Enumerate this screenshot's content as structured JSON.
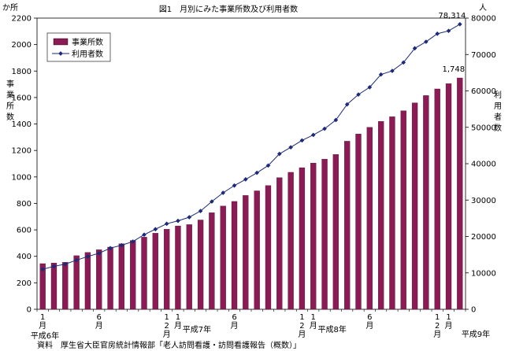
{
  "chart_data": {
    "type": "bar",
    "title": "図1　月別にみた事業所数及び利用者数",
    "source": "資料　厚生省大臣官房統計情報部「老人訪問看護・訪問看護報告（概数）」",
    "left_axis": {
      "unit": "か所",
      "label": [
        "事",
        "業",
        "所",
        "数"
      ],
      "ylim": [
        0,
        2200
      ],
      "ticks": [
        "0",
        "200",
        "400",
        "600",
        "800",
        "1000",
        "1200",
        "1400",
        "1600",
        "1800",
        "2000",
        "2200"
      ]
    },
    "right_axis": {
      "unit": "人",
      "label": [
        "利",
        "用",
        "者",
        "数"
      ],
      "ylim": [
        0,
        80000
      ],
      "ticks": [
        "0",
        "10000",
        "20000",
        "30000",
        "40000",
        "50000",
        "60000",
        "70000",
        "80000"
      ]
    },
    "x_labels": [
      {
        "index": 0,
        "chars": [
          "1",
          "月"
        ]
      },
      {
        "index": 5,
        "chars": [
          "6",
          "月"
        ]
      },
      {
        "index": 11,
        "chars": [
          "1",
          "2",
          "月"
        ]
      },
      {
        "index": 12,
        "chars": [
          "1",
          "月"
        ]
      },
      {
        "index": 17,
        "chars": [
          "6",
          "月"
        ]
      },
      {
        "index": 23,
        "chars": [
          "1",
          "2",
          "月"
        ]
      },
      {
        "index": 24,
        "chars": [
          "1",
          "月"
        ]
      },
      {
        "index": 29,
        "chars": [
          "6",
          "月"
        ]
      },
      {
        "index": 35,
        "chars": [
          "1",
          "2",
          "月"
        ]
      },
      {
        "index": 36,
        "chars": [
          "1",
          "月"
        ]
      }
    ],
    "year_labels": [
      {
        "index": 0,
        "text": "平成6年"
      },
      {
        "index": 12,
        "text": "平成7年"
      },
      {
        "index": 24,
        "text": "平成8年"
      },
      {
        "index": 36,
        "text": "平成9年"
      }
    ],
    "legend": {
      "position": "top-left",
      "bar_label": "事業所数",
      "line_label": "利用者数"
    },
    "annotations": {
      "last_bar_label": "1,748",
      "last_line_label": "78,314"
    },
    "colors": {
      "bar": "#8b1a55",
      "line": "#1c2a78"
    },
    "series": [
      {
        "name": "事業所数",
        "axis": "left",
        "values": [
          345,
          350,
          355,
          405,
          430,
          450,
          470,
          495,
          520,
          545,
          575,
          605,
          630,
          640,
          675,
          730,
          780,
          815,
          860,
          895,
          935,
          995,
          1035,
          1070,
          1105,
          1135,
          1170,
          1270,
          1325,
          1375,
          1420,
          1455,
          1500,
          1560,
          1615,
          1665,
          1705,
          1748
        ]
      },
      {
        "name": "利用者数",
        "axis": "right",
        "values": [
          11000,
          11800,
          12400,
          13500,
          14500,
          15400,
          16800,
          17600,
          18600,
          20500,
          22000,
          23500,
          24300,
          25300,
          27000,
          29600,
          32000,
          34000,
          35700,
          37500,
          39500,
          42700,
          44500,
          46400,
          47900,
          49600,
          52000,
          56300,
          59000,
          61000,
          64500,
          65500,
          67800,
          71700,
          73500,
          75700,
          76500,
          78314
        ]
      }
    ]
  }
}
